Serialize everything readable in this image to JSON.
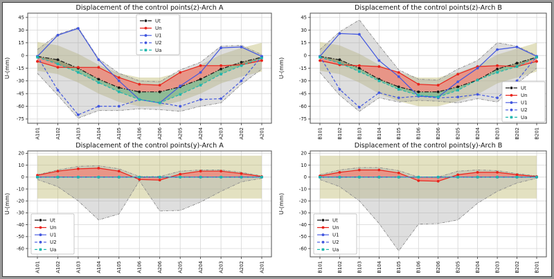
{
  "figure": {
    "background": "#ffffff",
    "frame_outer_color": "#9b9b9b",
    "frame_inner_color": "#3a3a3a"
  },
  "styles": {
    "grid_color": "#d6d6d6",
    "spine_color": "#4d4d4d",
    "tick_color": "#333333",
    "text_color": "#111111",
    "fill_band": "rgba(189,183,107,0.42)",
    "fill_envelope": "rgba(168,168,168,0.38)",
    "fill_un_ut": "rgba(250,114,104,0.60)",
    "fill_ut_ua": "rgba(70,170,110,0.45)",
    "envelope_edge_color": "#8c8c8c",
    "legend_border_color": "#bbbbbb",
    "legend_background": "#ffffff",
    "series": [
      {
        "key": "Ut",
        "label": "Ut",
        "color": "#1a1a1a",
        "dash": "6 2 1.5 2",
        "marker": "circle"
      },
      {
        "key": "Un",
        "label": "Un",
        "color": "#e8231b",
        "dash": "",
        "marker": "circle"
      },
      {
        "key": "U1",
        "label": "U1",
        "color": "#4156df",
        "dash": "",
        "marker": "circle"
      },
      {
        "key": "U2",
        "label": "U2",
        "color": "#4156df",
        "dash": "4 2.5",
        "marker": "circle"
      },
      {
        "key": "Ua",
        "label": "Ua",
        "color": "#1eb7ae",
        "dash": "4 2.5",
        "marker": "square"
      }
    ]
  },
  "chart_data": [
    {
      "type": "line",
      "title": "Displacement of the control points(z)-Arch A",
      "ylabel": "U-(mm)",
      "ylim": [
        -80,
        50
      ],
      "yticks": [
        45,
        30,
        15,
        0,
        -15,
        -30,
        -45,
        -60,
        -75
      ],
      "grid": true,
      "legend_pos": "upper-center",
      "categories": [
        "A101",
        "A102",
        "A103",
        "A104",
        "A105",
        "A106",
        "A206",
        "A205",
        "A204",
        "A203",
        "A202",
        "A201"
      ],
      "series": [
        {
          "name": "Ut",
          "values": [
            -1,
            -5,
            -15,
            -28,
            -38,
            -43,
            -43,
            -37,
            -28,
            -16,
            -8,
            -2
          ]
        },
        {
          "name": "Un",
          "values": [
            -7,
            -14,
            -14,
            -14,
            -26,
            -34,
            -35,
            -20,
            -12,
            -12,
            -11,
            -6
          ]
        },
        {
          "name": "U1",
          "values": [
            -1,
            24,
            32,
            -5,
            -30,
            -52,
            -56,
            -36,
            -20,
            9,
            10,
            -1
          ]
        },
        {
          "name": "U2",
          "values": [
            -1,
            -41,
            -70,
            -60,
            -60,
            -52,
            -56,
            -60,
            -52,
            -51,
            -30,
            -1
          ]
        },
        {
          "name": "Ua",
          "values": [
            -2,
            -10,
            -20,
            -32,
            -43,
            -52,
            -56,
            -46,
            -35,
            -22,
            -12,
            -3
          ]
        }
      ],
      "envelope": {
        "upper": [
          7,
          25,
          33,
          -4,
          -21,
          -30,
          -31,
          -17,
          -8,
          11,
          12,
          1
        ],
        "lower": [
          -21,
          -47,
          -74,
          -65,
          -65,
          -63,
          -64,
          -66,
          -60,
          -56,
          -34,
          -16
        ]
      },
      "band": {
        "upper": [
          16,
          12,
          2,
          -11,
          -21,
          -26,
          -26,
          -20,
          -11,
          1,
          9,
          15
        ],
        "lower": [
          -18,
          -22,
          -32,
          -45,
          -55,
          -60,
          -60,
          -54,
          -45,
          -33,
          -25,
          -19
        ]
      }
    },
    {
      "type": "line",
      "title": "Displacement of the control points(z)-Arch B",
      "ylabel": "U-(mm)",
      "ylim": [
        -80,
        50
      ],
      "yticks": [
        45,
        30,
        15,
        0,
        -15,
        -30,
        -45,
        -60,
        -75
      ],
      "grid": true,
      "legend_pos": "lower-right",
      "categories": [
        "B101",
        "B102",
        "B103",
        "B104",
        "B105",
        "B106",
        "B206",
        "B205",
        "B204",
        "B203",
        "B202",
        "B201"
      ],
      "series": [
        {
          "name": "Ut",
          "values": [
            -1,
            -5,
            -15,
            -28,
            -37,
            -43,
            -43,
            -37,
            -29,
            -16,
            -9,
            -2
          ]
        },
        {
          "name": "Un",
          "values": [
            -6,
            -11,
            -12,
            -13,
            -20,
            -34,
            -35,
            -22,
            -13,
            -12,
            -13,
            -7
          ]
        },
        {
          "name": "U1",
          "values": [
            -1,
            26,
            25,
            -6,
            -25,
            -48,
            -49,
            -31,
            -15,
            7,
            10,
            -1
          ]
        },
        {
          "name": "U2",
          "values": [
            -1,
            -40,
            -61,
            -44,
            -50,
            -48,
            -50,
            -49,
            -46,
            -50,
            -30,
            -1
          ]
        },
        {
          "name": "Ua",
          "values": [
            -2,
            -9,
            -19,
            -30,
            -40,
            -47,
            -49,
            -41,
            -29,
            -20,
            -13,
            -2
          ]
        }
      ],
      "envelope": {
        "upper": [
          7,
          28,
          42,
          12,
          -17,
          -28,
          -29,
          -16,
          -6,
          15,
          11,
          0
        ],
        "lower": [
          -20,
          -47,
          -66,
          -50,
          -55,
          -53,
          -54,
          -56,
          -51,
          -55,
          -33,
          -15
        ]
      },
      "band": {
        "upper": [
          16,
          12,
          2,
          -11,
          -20,
          -26,
          -26,
          -20,
          -12,
          1,
          8,
          15
        ],
        "lower": [
          -18,
          -22,
          -32,
          -45,
          -54,
          -60,
          -60,
          -54,
          -46,
          -33,
          -26,
          -19
        ]
      }
    },
    {
      "type": "line",
      "title": "Displacement of the control points(y)-Arch A",
      "ylabel": "U-(mm)",
      "ylim": [
        -67,
        22
      ],
      "yticks": [
        20,
        10,
        0,
        -10,
        -20,
        -30,
        -40,
        -50,
        -60
      ],
      "grid": true,
      "legend_pos": "lower-left",
      "categories": [
        "A101",
        "A102",
        "A103",
        "A104",
        "A105",
        "A106",
        "A206",
        "A205",
        "A204",
        "A203",
        "A202",
        "A201"
      ],
      "series": [
        {
          "name": "Ut",
          "values": [
            0,
            0,
            0,
            0,
            0,
            0,
            0,
            0,
            0,
            0,
            0,
            0
          ]
        },
        {
          "name": "Un",
          "values": [
            1.5,
            5,
            7,
            7.5,
            5,
            -2,
            -2.5,
            2.5,
            5,
            5,
            3,
            0.5
          ]
        },
        {
          "name": "U1",
          "values": [
            0,
            0,
            0,
            0,
            0,
            0,
            0,
            0,
            0,
            0,
            0,
            0
          ]
        },
        {
          "name": "U2",
          "values": [
            0,
            0,
            0,
            0,
            0,
            0,
            0,
            0,
            0,
            0,
            0,
            0
          ]
        },
        {
          "name": "Ua",
          "values": [
            0,
            0,
            0,
            0,
            0,
            0,
            0,
            0,
            0,
            0,
            0,
            0
          ]
        }
      ],
      "envelope": {
        "upper": [
          2,
          6,
          9,
          9.5,
          7,
          0.5,
          0.5,
          5,
          6,
          6,
          4,
          1
        ],
        "lower": [
          -2,
          -8,
          -20,
          -36,
          -31,
          -3,
          -28.5,
          -28,
          -21,
          -12,
          -4,
          -1
        ]
      },
      "band": {
        "upper": [
          18,
          18,
          18,
          18,
          18,
          18,
          18,
          18,
          18,
          18,
          18,
          18
        ],
        "lower": [
          -18,
          -18,
          -18,
          -18,
          -18,
          -18,
          -18,
          -18,
          -18,
          -18,
          -18,
          -18
        ]
      }
    },
    {
      "type": "line",
      "title": "Displacement of the control points(y)-Arch B",
      "ylabel": "U-(mm)",
      "ylim": [
        -67,
        22
      ],
      "yticks": [
        20,
        10,
        0,
        -10,
        -20,
        -30,
        -40,
        -50,
        -60
      ],
      "grid": true,
      "legend_pos": "lower-left",
      "categories": [
        "B101",
        "B102",
        "B103",
        "B104",
        "B105",
        "B106",
        "B206",
        "B205",
        "B204",
        "B203",
        "B202",
        "B201"
      ],
      "series": [
        {
          "name": "Ut",
          "values": [
            0,
            0,
            0,
            0,
            0,
            0,
            0,
            0,
            0,
            0,
            0,
            0
          ]
        },
        {
          "name": "Un",
          "values": [
            1,
            4,
            6,
            6,
            3.5,
            -3,
            -3.5,
            2,
            4,
            4,
            2,
            0.5
          ]
        },
        {
          "name": "U1",
          "values": [
            0,
            0,
            0,
            0,
            0,
            0,
            0,
            0,
            0,
            0,
            0,
            0
          ]
        },
        {
          "name": "U2",
          "values": [
            0,
            0,
            0,
            0,
            0,
            0,
            0,
            0,
            0,
            0,
            0,
            0
          ]
        },
        {
          "name": "Ua",
          "values": [
            0,
            0,
            0,
            0,
            0,
            0,
            0,
            0,
            0,
            0,
            0,
            0
          ]
        }
      ],
      "envelope": {
        "upper": [
          2,
          6,
          8,
          8,
          5.5,
          0,
          0,
          5,
          6,
          5.5,
          3,
          1
        ],
        "lower": [
          -2,
          -8,
          -20,
          -39,
          -62,
          -39.5,
          -39,
          -36,
          -22,
          -12,
          -5,
          -1
        ]
      },
      "band": {
        "upper": [
          18,
          18,
          18,
          18,
          18,
          18,
          18,
          18,
          18,
          18,
          18,
          18
        ],
        "lower": [
          -18,
          -18,
          -18,
          -18,
          -18,
          -18,
          -18,
          -18,
          -18,
          -18,
          -18,
          -18
        ]
      }
    }
  ]
}
